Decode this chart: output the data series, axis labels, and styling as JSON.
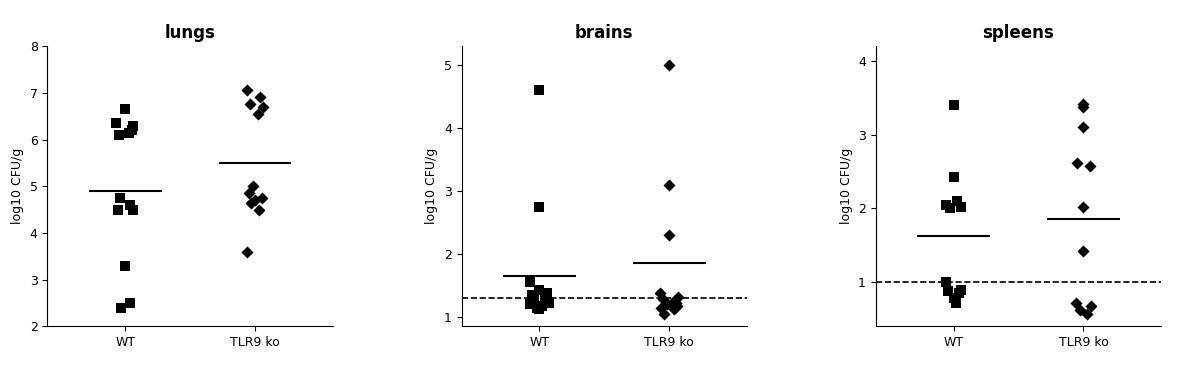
{
  "lungs": {
    "title": "lungs",
    "ylabel": "log10 CFU/g",
    "ylim": [
      2,
      8
    ],
    "yticks": [
      2,
      3,
      4,
      5,
      6,
      7,
      8
    ],
    "wt": [
      6.35,
      6.2,
      6.1,
      6.15,
      6.3,
      6.65,
      4.75,
      4.6,
      4.5,
      4.5,
      3.3,
      2.4,
      2.5
    ],
    "wt_median": 4.9,
    "ko": [
      6.75,
      6.9,
      7.05,
      6.7,
      6.55,
      5.0,
      4.85,
      4.75,
      4.7,
      4.65,
      4.5,
      3.6
    ],
    "ko_median": 5.5,
    "dashed_line": null,
    "jitter_wt": [
      -0.07,
      0.05,
      -0.05,
      0.03,
      0.06,
      0.0,
      -0.04,
      0.04,
      -0.06,
      0.06,
      0.0,
      -0.03,
      0.04
    ],
    "jitter_ko": [
      -0.04,
      0.04,
      -0.06,
      0.06,
      0.02,
      -0.02,
      -0.05,
      0.05,
      0.0,
      -0.03,
      0.03,
      -0.06,
      0.06
    ]
  },
  "brains": {
    "title": "brains",
    "ylabel": "log10 CFU/g",
    "ylim": [
      0.85,
      5.3
    ],
    "yticks": [
      1,
      2,
      3,
      4,
      5
    ],
    "wt": [
      4.6,
      2.75,
      1.55,
      1.42,
      1.38,
      1.35,
      1.32,
      1.28,
      1.22,
      1.2,
      1.17,
      1.15,
      1.12
    ],
    "wt_median": 1.65,
    "ko": [
      5.0,
      3.1,
      2.3,
      1.38,
      1.32,
      1.28,
      1.22,
      1.22,
      1.2,
      1.17,
      1.15,
      1.12,
      1.05
    ],
    "ko_median": 1.85,
    "dashed_line": 1.3,
    "jitter_wt": [
      0.0,
      0.0,
      -0.07,
      0.0,
      0.06,
      -0.06,
      0.04,
      -0.04,
      0.07,
      -0.07,
      0.02,
      -0.02,
      0.0
    ],
    "jitter_ko": [
      0.0,
      0.0,
      0.0,
      -0.07,
      0.07,
      -0.05,
      0.05,
      0.02,
      -0.02,
      0.06,
      -0.06,
      0.04,
      -0.04
    ]
  },
  "spleens": {
    "title": "spleens",
    "ylabel": "log10 CFU/g",
    "ylim": [
      0.4,
      4.2
    ],
    "yticks": [
      1,
      2,
      3,
      4
    ],
    "wt": [
      3.4,
      2.42,
      2.05,
      2.02,
      2.0,
      2.1,
      1.0,
      0.9,
      0.88,
      0.85,
      0.78,
      0.72
    ],
    "wt_median": 1.62,
    "ko": [
      3.42,
      3.37,
      3.1,
      2.62,
      2.58,
      2.02,
      1.42,
      0.72,
      0.67,
      0.62,
      0.57
    ],
    "ko_median": 1.85,
    "dashed_line": 1.0,
    "jitter_wt": [
      0.0,
      0.0,
      -0.06,
      0.06,
      -0.03,
      0.03,
      -0.06,
      0.06,
      -0.04,
      0.04,
      0.0,
      0.02
    ],
    "jitter_ko": [
      0.0,
      0.0,
      0.0,
      -0.05,
      0.05,
      0.0,
      0.0,
      -0.06,
      0.06,
      -0.03,
      0.03
    ]
  },
  "xtick_labels": [
    "WT",
    "TLR9 ko"
  ],
  "bg_color": "#ffffff",
  "point_color": "#000000",
  "marker_wt": "s",
  "marker_ko": "D",
  "marker_size_wt": 42,
  "marker_size_ko": 38,
  "line_color": "#000000",
  "title_fontsize": 12,
  "ylabel_fontsize": 9,
  "tick_fontsize": 9,
  "xtick_fontsize": 10
}
